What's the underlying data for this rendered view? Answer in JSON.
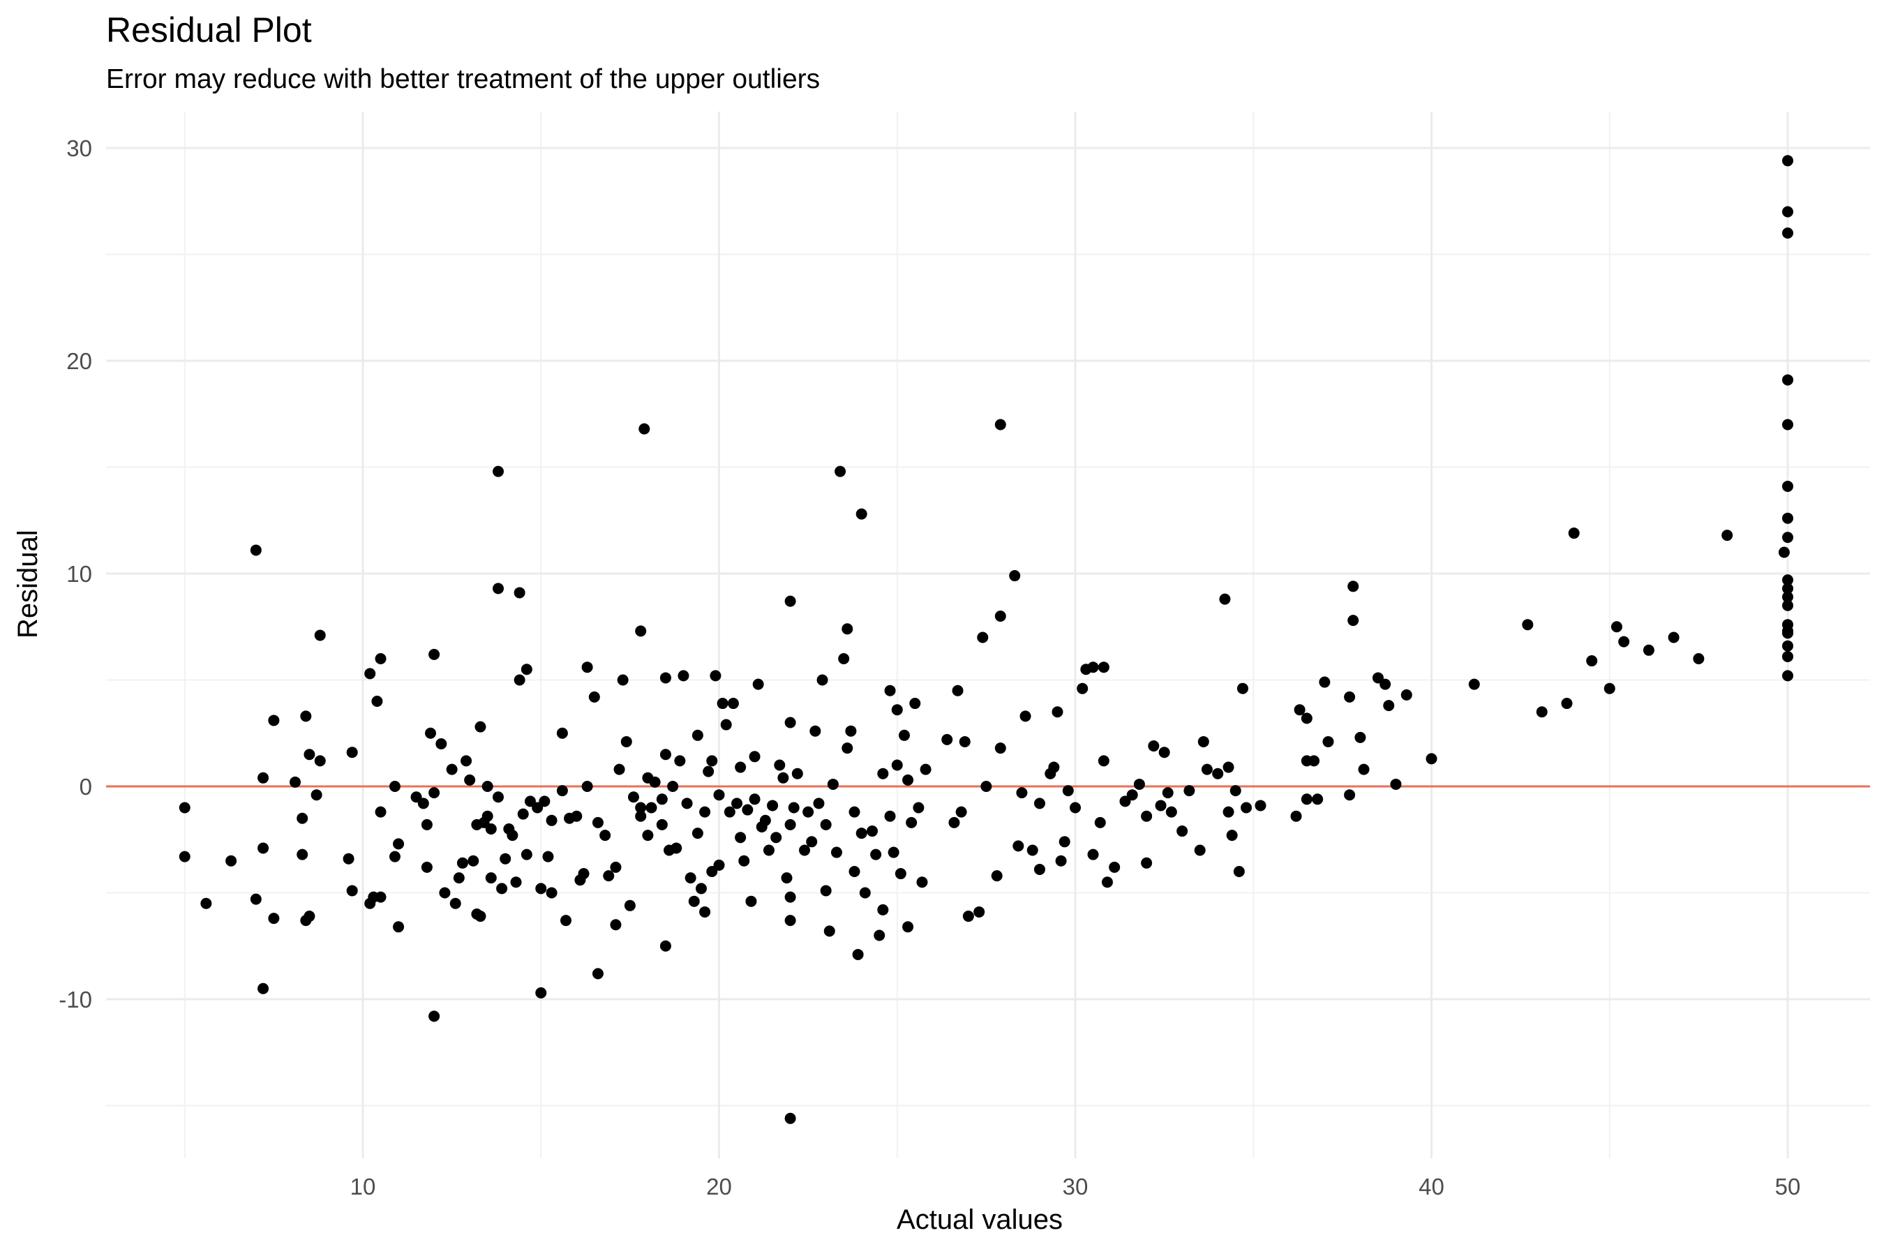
{
  "chart_data": {
    "type": "scatter",
    "title": "Residual Plot",
    "subtitle": "Error may reduce with better treatment of the upper outliers",
    "xlabel": "Actual values",
    "ylabel": "Residual",
    "xlim": [
      2.8,
      52.2
    ],
    "ylim": [
      -17.8,
      30.8
    ],
    "x_ticks": [
      10,
      20,
      30,
      40,
      50
    ],
    "y_ticks": [
      -10,
      0,
      10,
      20,
      30
    ],
    "x_minor": [
      5,
      15,
      25,
      35,
      45
    ],
    "y_minor": [
      -15,
      -5,
      5,
      15,
      25
    ],
    "grid": true,
    "reference_line": {
      "y": 0,
      "color": "#E8705A"
    },
    "point_color": "#000000",
    "points": [
      [
        5.0,
        -1.0
      ],
      [
        5.0,
        -3.3
      ],
      [
        5.6,
        -5.5
      ],
      [
        6.3,
        -3.5
      ],
      [
        7.0,
        11.1
      ],
      [
        7.0,
        -5.3
      ],
      [
        7.2,
        -9.5
      ],
      [
        7.2,
        -2.9
      ],
      [
        7.2,
        0.4
      ],
      [
        7.5,
        3.1
      ],
      [
        7.5,
        -6.2
      ],
      [
        8.1,
        0.2
      ],
      [
        8.3,
        -1.5
      ],
      [
        8.3,
        -3.2
      ],
      [
        8.4,
        3.3
      ],
      [
        8.4,
        -6.3
      ],
      [
        8.5,
        -6.1
      ],
      [
        8.5,
        1.5
      ],
      [
        8.7,
        -0.4
      ],
      [
        8.8,
        7.1
      ],
      [
        8.8,
        1.2
      ],
      [
        9.6,
        -3.4
      ],
      [
        9.7,
        1.6
      ],
      [
        9.7,
        -4.9
      ],
      [
        10.2,
        5.3
      ],
      [
        10.2,
        -5.5
      ],
      [
        10.3,
        -5.2
      ],
      [
        10.4,
        4.0
      ],
      [
        10.5,
        6.0
      ],
      [
        10.5,
        -1.2
      ],
      [
        10.5,
        -5.2
      ],
      [
        10.9,
        0.0
      ],
      [
        10.9,
        -3.3
      ],
      [
        11.0,
        -6.6
      ],
      [
        11.0,
        -2.7
      ],
      [
        11.5,
        -0.5
      ],
      [
        11.7,
        -0.8
      ],
      [
        11.8,
        -1.8
      ],
      [
        11.8,
        -3.8
      ],
      [
        11.9,
        2.5
      ],
      [
        12.0,
        -0.3
      ],
      [
        12.0,
        6.2
      ],
      [
        12.0,
        -10.8
      ],
      [
        12.2,
        2.0
      ],
      [
        12.3,
        -5.0
      ],
      [
        12.5,
        0.8
      ],
      [
        12.6,
        -5.5
      ],
      [
        12.7,
        -4.3
      ],
      [
        12.8,
        -3.6
      ],
      [
        12.9,
        1.2
      ],
      [
        13.0,
        0.3
      ],
      [
        13.1,
        -3.5
      ],
      [
        13.2,
        -6.0
      ],
      [
        13.2,
        -1.8
      ],
      [
        13.3,
        2.8
      ],
      [
        13.3,
        -6.1
      ],
      [
        13.4,
        -1.7
      ],
      [
        13.5,
        -1.4
      ],
      [
        13.5,
        0.0
      ],
      [
        13.6,
        -2.0
      ],
      [
        13.6,
        -4.3
      ],
      [
        13.8,
        -0.5
      ],
      [
        13.8,
        14.8
      ],
      [
        13.8,
        9.3
      ],
      [
        13.9,
        -4.8
      ],
      [
        14.0,
        -3.4
      ],
      [
        14.1,
        -2.0
      ],
      [
        14.2,
        -2.3
      ],
      [
        14.3,
        -4.5
      ],
      [
        14.4,
        5.0
      ],
      [
        14.4,
        9.1
      ],
      [
        14.5,
        -1.3
      ],
      [
        14.6,
        5.5
      ],
      [
        14.6,
        -3.2
      ],
      [
        14.7,
        -0.7
      ],
      [
        14.9,
        -1.0
      ],
      [
        15.0,
        -4.8
      ],
      [
        15.0,
        -9.7
      ],
      [
        15.1,
        -0.7
      ],
      [
        15.2,
        -3.3
      ],
      [
        15.3,
        -1.6
      ],
      [
        15.3,
        -5.0
      ],
      [
        15.6,
        2.5
      ],
      [
        15.6,
        -0.2
      ],
      [
        15.7,
        -6.3
      ],
      [
        15.8,
        -1.5
      ],
      [
        16.0,
        -1.4
      ],
      [
        16.1,
        -4.4
      ],
      [
        16.2,
        -4.1
      ],
      [
        16.3,
        0.0
      ],
      [
        16.3,
        5.6
      ],
      [
        16.5,
        4.2
      ],
      [
        16.6,
        -1.7
      ],
      [
        16.6,
        -8.8
      ],
      [
        16.8,
        -2.3
      ],
      [
        16.9,
        -4.2
      ],
      [
        17.1,
        -6.5
      ],
      [
        17.1,
        -3.8
      ],
      [
        17.2,
        0.8
      ],
      [
        17.3,
        5.0
      ],
      [
        17.4,
        2.1
      ],
      [
        17.5,
        -5.6
      ],
      [
        17.6,
        -0.5
      ],
      [
        17.8,
        -1.0
      ],
      [
        17.8,
        7.3
      ],
      [
        17.8,
        -1.4
      ],
      [
        17.9,
        16.8
      ],
      [
        18.0,
        0.4
      ],
      [
        18.0,
        -2.3
      ],
      [
        18.1,
        -1.0
      ],
      [
        18.2,
        0.2
      ],
      [
        18.4,
        -0.6
      ],
      [
        18.4,
        -1.8
      ],
      [
        18.5,
        1.5
      ],
      [
        18.5,
        -7.5
      ],
      [
        18.5,
        5.1
      ],
      [
        18.6,
        -3.0
      ],
      [
        18.7,
        0.0
      ],
      [
        18.8,
        -2.9
      ],
      [
        18.9,
        1.2
      ],
      [
        19.0,
        5.2
      ],
      [
        19.1,
        -0.8
      ],
      [
        19.2,
        -4.3
      ],
      [
        19.3,
        -5.4
      ],
      [
        19.4,
        2.4
      ],
      [
        19.4,
        -2.2
      ],
      [
        19.5,
        -4.8
      ],
      [
        19.6,
        -5.9
      ],
      [
        19.6,
        -1.2
      ],
      [
        19.7,
        0.7
      ],
      [
        19.8,
        -4.0
      ],
      [
        19.8,
        1.2
      ],
      [
        19.9,
        5.2
      ],
      [
        20.0,
        -3.7
      ],
      [
        20.0,
        -0.4
      ],
      [
        20.1,
        3.9
      ],
      [
        20.2,
        2.9
      ],
      [
        20.3,
        -1.2
      ],
      [
        20.4,
        3.9
      ],
      [
        20.5,
        -0.8
      ],
      [
        20.6,
        0.9
      ],
      [
        20.6,
        -2.4
      ],
      [
        20.7,
        -3.5
      ],
      [
        20.8,
        -1.1
      ],
      [
        20.9,
        -5.4
      ],
      [
        21.0,
        -0.6
      ],
      [
        21.0,
        1.4
      ],
      [
        21.1,
        4.8
      ],
      [
        21.2,
        -1.9
      ],
      [
        21.3,
        -1.6
      ],
      [
        21.4,
        -3.0
      ],
      [
        21.5,
        -0.9
      ],
      [
        21.6,
        -2.4
      ],
      [
        21.7,
        1.0
      ],
      [
        21.8,
        0.4
      ],
      [
        21.9,
        -4.3
      ],
      [
        22.0,
        3.0
      ],
      [
        22.0,
        -1.8
      ],
      [
        22.0,
        8.7
      ],
      [
        22.0,
        -5.2
      ],
      [
        22.0,
        -6.3
      ],
      [
        22.0,
        -15.6
      ],
      [
        22.1,
        -1.0
      ],
      [
        22.2,
        0.6
      ],
      [
        22.4,
        -3.0
      ],
      [
        22.5,
        -1.2
      ],
      [
        22.6,
        -2.6
      ],
      [
        22.7,
        2.6
      ],
      [
        22.8,
        -0.8
      ],
      [
        22.9,
        5.0
      ],
      [
        23.0,
        -1.8
      ],
      [
        23.0,
        -4.9
      ],
      [
        23.1,
        -6.8
      ],
      [
        23.2,
        0.1
      ],
      [
        23.3,
        -3.1
      ],
      [
        23.4,
        14.8
      ],
      [
        23.5,
        6.0
      ],
      [
        23.6,
        7.4
      ],
      [
        23.6,
        1.8
      ],
      [
        23.7,
        2.6
      ],
      [
        23.8,
        -4.0
      ],
      [
        23.8,
        -1.2
      ],
      [
        23.9,
        -7.9
      ],
      [
        24.0,
        -2.2
      ],
      [
        24.0,
        12.8
      ],
      [
        24.1,
        -5.0
      ],
      [
        24.3,
        -2.1
      ],
      [
        24.4,
        -3.2
      ],
      [
        24.5,
        -7.0
      ],
      [
        24.6,
        -5.8
      ],
      [
        24.6,
        0.6
      ],
      [
        24.8,
        4.5
      ],
      [
        24.8,
        -1.4
      ],
      [
        24.9,
        -3.1
      ],
      [
        25.0,
        3.6
      ],
      [
        25.0,
        1.0
      ],
      [
        25.1,
        -4.1
      ],
      [
        25.2,
        2.4
      ],
      [
        25.3,
        -6.6
      ],
      [
        25.3,
        0.3
      ],
      [
        25.4,
        -1.7
      ],
      [
        25.5,
        3.9
      ],
      [
        25.6,
        -1.0
      ],
      [
        25.7,
        -4.5
      ],
      [
        25.8,
        0.8
      ],
      [
        26.4,
        2.2
      ],
      [
        26.6,
        -1.7
      ],
      [
        26.7,
        4.5
      ],
      [
        26.8,
        -1.2
      ],
      [
        26.9,
        2.1
      ],
      [
        27.0,
        -6.1
      ],
      [
        27.3,
        -5.9
      ],
      [
        27.4,
        7.0
      ],
      [
        27.5,
        0.0
      ],
      [
        27.8,
        -4.2
      ],
      [
        27.9,
        1.8
      ],
      [
        27.9,
        8.0
      ],
      [
        27.9,
        17.0
      ],
      [
        28.3,
        9.9
      ],
      [
        28.4,
        -2.8
      ],
      [
        28.5,
        -0.3
      ],
      [
        28.6,
        3.3
      ],
      [
        28.8,
        -3.0
      ],
      [
        29.0,
        -0.8
      ],
      [
        29.0,
        -3.9
      ],
      [
        29.3,
        0.6
      ],
      [
        29.4,
        0.9
      ],
      [
        29.5,
        3.5
      ],
      [
        29.6,
        -3.5
      ],
      [
        29.7,
        -2.6
      ],
      [
        29.8,
        -0.2
      ],
      [
        30.0,
        -1.0
      ],
      [
        30.2,
        4.6
      ],
      [
        30.3,
        5.5
      ],
      [
        30.5,
        5.6
      ],
      [
        30.5,
        -3.2
      ],
      [
        30.7,
        -1.7
      ],
      [
        30.8,
        5.6
      ],
      [
        30.8,
        1.2
      ],
      [
        30.9,
        -4.5
      ],
      [
        31.1,
        -3.8
      ],
      [
        31.4,
        -0.7
      ],
      [
        31.6,
        -0.4
      ],
      [
        31.8,
        0.1
      ],
      [
        32.0,
        -3.6
      ],
      [
        32.0,
        -1.4
      ],
      [
        32.2,
        1.9
      ],
      [
        32.4,
        -0.9
      ],
      [
        32.5,
        1.6
      ],
      [
        32.6,
        -0.3
      ],
      [
        32.7,
        -1.2
      ],
      [
        33.0,
        -2.1
      ],
      [
        33.2,
        -0.2
      ],
      [
        33.5,
        -3.0
      ],
      [
        33.6,
        2.1
      ],
      [
        33.7,
        0.8
      ],
      [
        34.0,
        0.6
      ],
      [
        34.2,
        8.8
      ],
      [
        34.3,
        0.9
      ],
      [
        34.3,
        -1.2
      ],
      [
        34.4,
        -2.3
      ],
      [
        34.5,
        -0.2
      ],
      [
        34.6,
        -4.0
      ],
      [
        34.7,
        4.6
      ],
      [
        34.8,
        -1.0
      ],
      [
        35.2,
        -0.9
      ],
      [
        36.2,
        -1.4
      ],
      [
        36.3,
        3.6
      ],
      [
        36.5,
        3.2
      ],
      [
        36.5,
        1.2
      ],
      [
        36.5,
        -0.6
      ],
      [
        36.7,
        1.2
      ],
      [
        36.8,
        -0.6
      ],
      [
        37.0,
        4.9
      ],
      [
        37.1,
        2.1
      ],
      [
        37.7,
        4.2
      ],
      [
        37.7,
        -0.4
      ],
      [
        37.8,
        7.8
      ],
      [
        37.8,
        9.4
      ],
      [
        38.0,
        2.3
      ],
      [
        38.1,
        0.8
      ],
      [
        38.5,
        5.1
      ],
      [
        38.7,
        4.8
      ],
      [
        38.8,
        3.8
      ],
      [
        39.0,
        0.1
      ],
      [
        39.3,
        4.3
      ],
      [
        40.0,
        1.3
      ],
      [
        41.2,
        4.8
      ],
      [
        42.7,
        7.6
      ],
      [
        43.1,
        3.5
      ],
      [
        43.8,
        3.9
      ],
      [
        44.0,
        11.9
      ],
      [
        44.5,
        5.9
      ],
      [
        45.0,
        4.6
      ],
      [
        45.2,
        7.5
      ],
      [
        45.4,
        6.8
      ],
      [
        46.1,
        6.4
      ],
      [
        46.8,
        7.0
      ],
      [
        47.5,
        6.0
      ],
      [
        48.3,
        11.8
      ],
      [
        49.9,
        11.0
      ],
      [
        50.0,
        7.3
      ],
      [
        50.3,
        7.2
      ],
      [
        51.0,
        29.4
      ],
      [
        51.0,
        27.0
      ],
      [
        51.0,
        26.0
      ],
      [
        51.0,
        19.1
      ],
      [
        51.0,
        17.0
      ],
      [
        51.0,
        14.1
      ],
      [
        51.0,
        12.6
      ],
      [
        51.0,
        11.7
      ],
      [
        51.0,
        9.7
      ],
      [
        51.0,
        9.3
      ],
      [
        51.0,
        8.9
      ],
      [
        51.0,
        8.5
      ],
      [
        51.0,
        7.6
      ],
      [
        51.0,
        6.6
      ],
      [
        51.0,
        6.1
      ],
      [
        51.0,
        5.2
      ]
    ]
  }
}
